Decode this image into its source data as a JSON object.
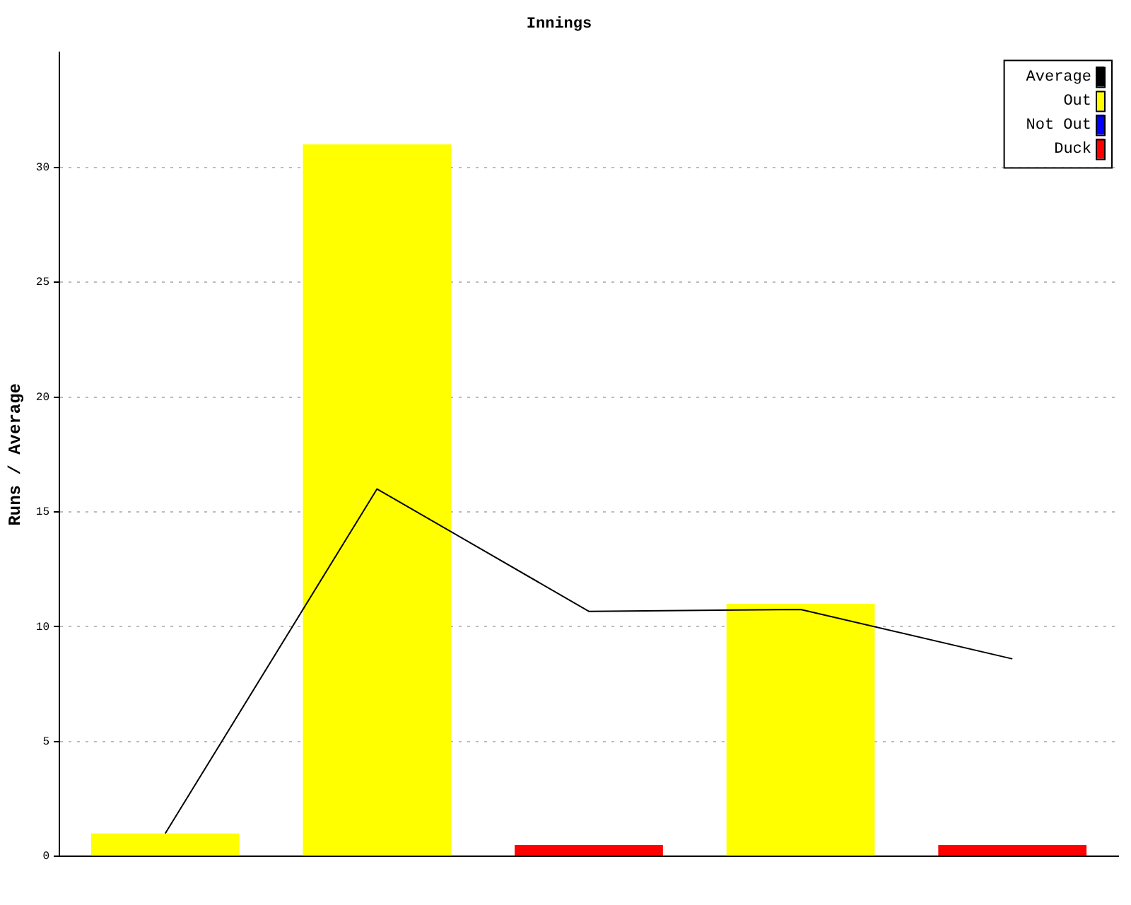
{
  "chart_data": {
    "type": "bar",
    "title": "Innings",
    "ylabel": "Runs / Average",
    "categories": [
      null,
      null,
      null,
      null,
      null
    ],
    "stacked": true,
    "ylim": [
      0,
      35
    ],
    "yticks": [
      0,
      5,
      10,
      15,
      20,
      25,
      30
    ],
    "grid": "y",
    "legend": "top right",
    "series": [
      {
        "name": "Average",
        "type": "line",
        "color": "#000000",
        "values": [
          1,
          16,
          10.67,
          10.75,
          8.6
        ]
      },
      {
        "name": "Out",
        "color": "#ffff00",
        "values": [
          1,
          31,
          null,
          11,
          null
        ]
      },
      {
        "name": "Not Out",
        "color": "#0000ff",
        "values": [
          null,
          null,
          null,
          null,
          null
        ]
      },
      {
        "name": "Duck",
        "color": "#ff0000",
        "values": [
          null,
          null,
          0.5,
          null,
          0.5
        ]
      }
    ]
  }
}
